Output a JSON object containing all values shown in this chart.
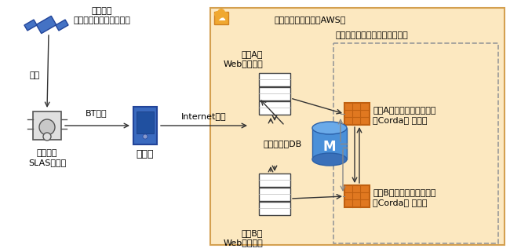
{
  "bg_color": "#ffffff",
  "cloud_bg": "#fce8c0",
  "cloud_border": "#d4a050",
  "cloud_label": "クラウドシステム（AWS）",
  "blockchain_label": "ブロックチェーンネットワーク",
  "satellite_label": "みちびき\n（準天頂衛星システム）",
  "receiver_label": "みちびき\nSLAS受信機",
  "smartphone_label": "スマホ",
  "serverA_label": "業者Aの\nWebサーバー",
  "serverB_label": "業者Bの\nWebサーバー",
  "db_label": "サーバー用DB",
  "nodeA_label1": "業者Aのブロックチェーン",
  "nodeA_label2": "（Corda） ノード",
  "nodeB_label1": "業者Bのブロックチェーン",
  "nodeB_label2": "（Corda） ノード",
  "bt_label": "BT経由",
  "internet_label": "Internet経由",
  "receive_label": "受信",
  "arrow_color": "#333333",
  "connector_color": "#888888",
  "node_orange": "#e07820",
  "node_orange_dark": "#c06010",
  "server_fc": "#ffffff",
  "server_ec": "#444444",
  "db_blue": "#4a90d9",
  "db_blue_dark": "#2a60a9",
  "phone_blue": "#3a6abf",
  "phone_screen": "#2050a0",
  "sat_blue": "#4472c4",
  "recv_gray": "#e0e0e0",
  "recv_ec": "#555555"
}
